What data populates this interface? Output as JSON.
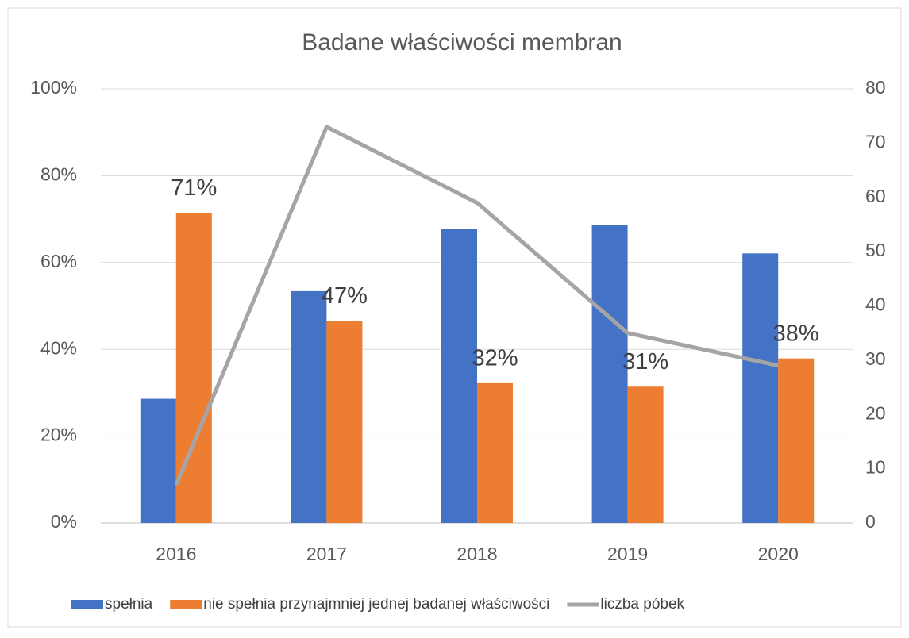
{
  "chart_data": {
    "type": "bar",
    "title": "Badane właściwości membran",
    "categories": [
      "2016",
      "2017",
      "2018",
      "2019",
      "2020"
    ],
    "series": [
      {
        "name": "spełnia",
        "color": "#4472c4",
        "values": [
          28.6,
          53.4,
          67.8,
          68.6,
          62.1
        ]
      },
      {
        "name": "nie spełnia przynajmniej jednej badanej właściwości",
        "color": "#ed7d31",
        "values": [
          71.4,
          46.6,
          32.2,
          31.4,
          37.9
        ],
        "value_labels": [
          "71%",
          "47%",
          "32%",
          "31%",
          "38%"
        ]
      },
      {
        "name": "liczba póbek",
        "color": "#a5a5a5",
        "type": "line",
        "axis": "y2",
        "values": [
          7,
          73,
          59,
          35,
          29
        ]
      }
    ],
    "ylim": [
      0,
      100
    ],
    "yticks": [
      {
        "value": 0,
        "label": "0%"
      },
      {
        "value": 20,
        "label": "20%"
      },
      {
        "value": 40,
        "label": "40%"
      },
      {
        "value": 60,
        "label": "60%"
      },
      {
        "value": 80,
        "label": "80%"
      },
      {
        "value": 100,
        "label": "100%"
      }
    ],
    "y2lim": [
      0,
      80
    ],
    "y2ticks": [
      0,
      10,
      20,
      30,
      40,
      50,
      60,
      70,
      80
    ],
    "grid": true,
    "legend": "bottom"
  }
}
